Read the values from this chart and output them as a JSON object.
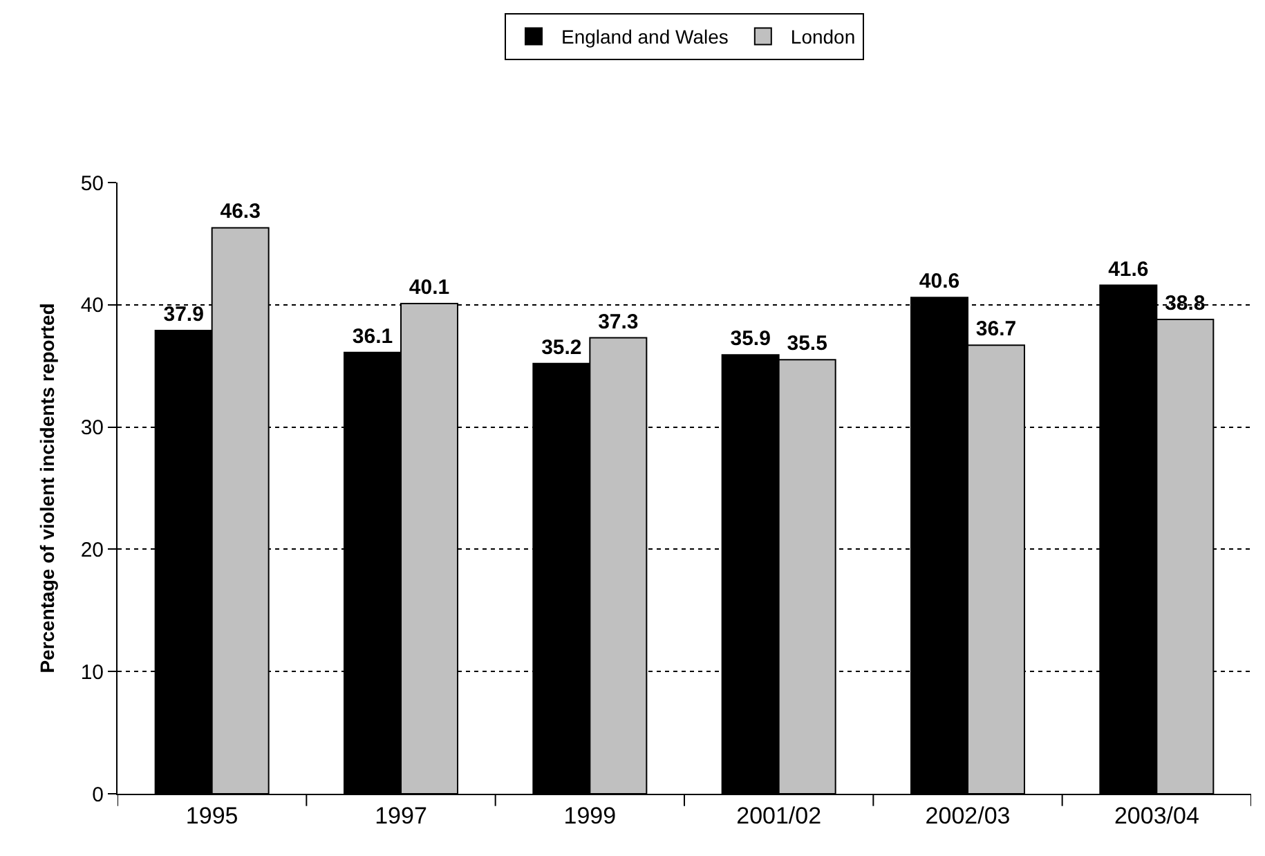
{
  "chart_data": {
    "type": "bar",
    "ylabel": "Percentage of violent incidents reported",
    "categories": [
      "1995",
      "1997",
      "1999",
      "2001/02",
      "2002/03",
      "2003/04"
    ],
    "series": [
      {
        "name": "England and Wales",
        "color": "#000000",
        "values": [
          37.9,
          36.1,
          35.2,
          35.9,
          40.6,
          41.6
        ]
      },
      {
        "name": "London",
        "color": "#c0c0c0",
        "values": [
          46.3,
          40.1,
          37.3,
          35.5,
          36.7,
          38.8
        ]
      }
    ],
    "ylim": [
      0,
      50
    ],
    "yticks": [
      0,
      10,
      20,
      30,
      40,
      50
    ],
    "grid": "y",
    "legend": "top",
    "data_labels": true
  }
}
